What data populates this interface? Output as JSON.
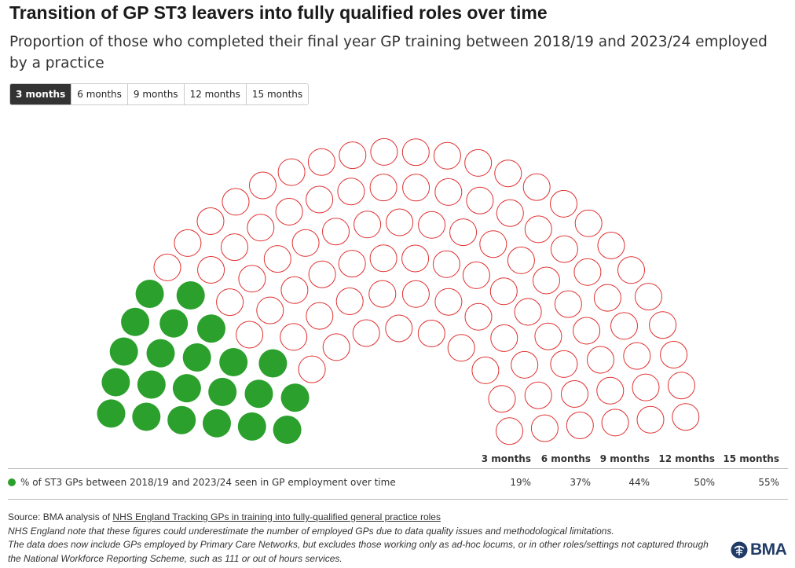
{
  "title": "Transition of GP ST3 leavers into fully qualified roles over time",
  "subtitle": "Proportion of those who completed their final year GP training between 2018/19 and 2023/24 employed by a practice",
  "tabs": [
    {
      "label": "3 months",
      "active": true
    },
    {
      "label": "6 months",
      "active": false
    },
    {
      "label": "9 months",
      "active": false
    },
    {
      "label": "12 months",
      "active": false
    },
    {
      "label": "15 months",
      "active": false
    }
  ],
  "chart_data": {
    "type": "parliament",
    "total_seats": 116,
    "filled_seats": 22,
    "selected_period": "3 months",
    "filled_color": "#2ca02c",
    "empty_stroke_color": "#e03030",
    "series": [
      {
        "name": "% of ST3 GPs between 2018/19 and 2023/24 seen in GP employment over time",
        "categories": [
          "3 months",
          "6 months",
          "9 months",
          "12 months",
          "15 months"
        ],
        "values": [
          "19%",
          "37%",
          "44%",
          "50%",
          "55%"
        ]
      }
    ]
  },
  "table": {
    "headers": [
      "3 months",
      "6 months",
      "9 months",
      "12 months",
      "15 months"
    ],
    "row_label": "% of ST3 GPs between 2018/19 and 2023/24 seen in GP employment over time",
    "values": [
      "19%",
      "37%",
      "44%",
      "50%",
      "55%"
    ]
  },
  "footer": {
    "source_prefix": "Source: BMA analysis of ",
    "source_link": "NHS England Tracking GPs in training into fully-qualified general practice roles",
    "note1": "NHS England note that these figures could underestimate the number of employed GPs due to data quality issues and methodological limitations.",
    "note2": "The data does now include GPs employed by Primary Care Networks, but excludes those working only as ad-hoc locums, or in other roles/settings not captured through the National Workforce Reporting Scheme, such as 111 or out of hours services."
  },
  "logo": {
    "text": "BMA"
  }
}
